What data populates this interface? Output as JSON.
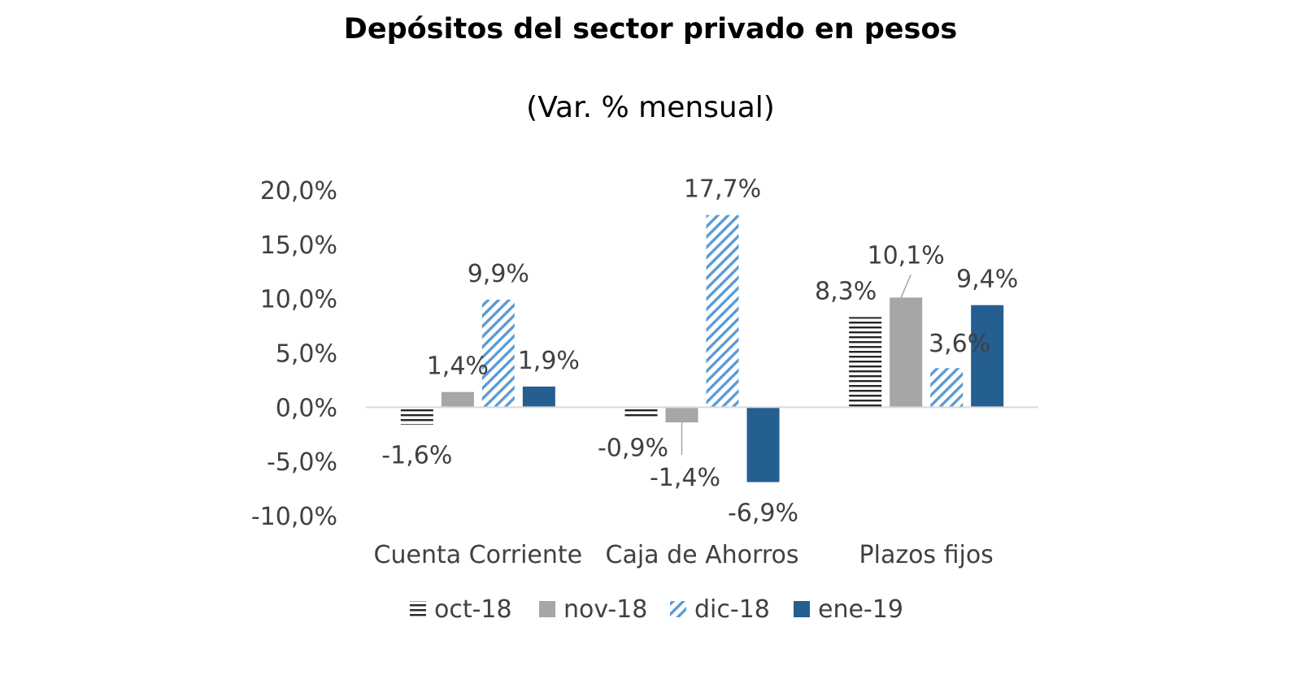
{
  "chart_data": {
    "type": "bar",
    "title": "Depósitos del sector privado en pesos",
    "subtitle": "(Var. % mensual)",
    "xlabel": "",
    "ylabel": "",
    "categories": [
      "Cuenta Corriente",
      "Caja de Ahorros",
      "Plazos fijos"
    ],
    "ylim": [
      -10,
      20
    ],
    "yticks": [
      20,
      15,
      10,
      5,
      0,
      -5,
      -10
    ],
    "ytick_labels": [
      "20,0%",
      "15,0%",
      "10,0%",
      "5,0%",
      "0,0%",
      "-5,0%",
      "-10,0%"
    ],
    "grid": false,
    "legend_position": "bottom",
    "series": [
      {
        "name": "oct-18",
        "values": [
          -1.6,
          -0.9,
          8.3
        ],
        "labels": [
          "-1,6%",
          "-0,9%",
          "8,3%"
        ],
        "color": "#404040",
        "pattern": "horizontal-lines"
      },
      {
        "name": "nov-18",
        "values": [
          1.4,
          -1.4,
          10.1
        ],
        "labels": [
          "1,4%",
          "-1,4%",
          "10,1%"
        ],
        "color": "#a6a6a6",
        "pattern": "solid"
      },
      {
        "name": "dic-18",
        "values": [
          9.9,
          17.7,
          3.6
        ],
        "labels": [
          "9,9%",
          "17,7%",
          "3,6%"
        ],
        "color": "#5b9bd5",
        "pattern": "diagonal-lines"
      },
      {
        "name": "ene-19",
        "values": [
          1.9,
          -6.9,
          9.4
        ],
        "labels": [
          "1,9%",
          "-6,9%",
          "9,4%"
        ],
        "color": "#255e91",
        "pattern": "solid"
      }
    ]
  }
}
